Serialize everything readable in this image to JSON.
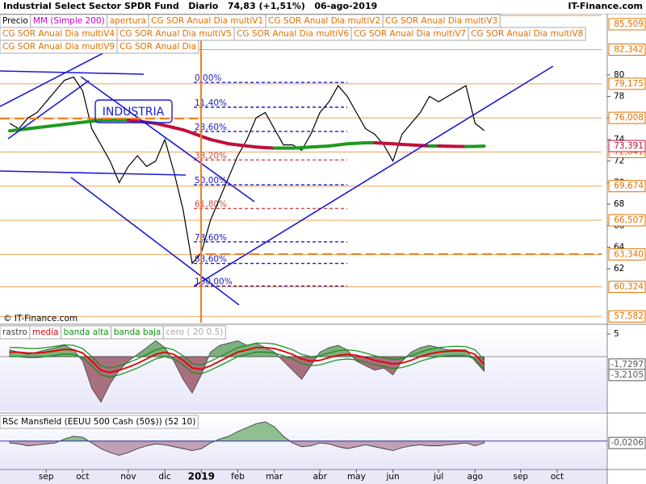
{
  "chart_data": [
    {
      "type": "line",
      "title": "Industrial Select Sector SPDR Fund   Diario   74,83 (+1,51%)   06-ago-2019",
      "brand": "IT-Finance.com",
      "copyright": "© IT-Finance.com",
      "annotation": "INDUSTRIA",
      "categories": [
        null,
        null,
        null,
        null,
        "sep",
        null,
        null,
        null,
        "oct",
        null,
        null,
        null,
        null,
        "nov",
        null,
        null,
        null,
        "dic",
        null,
        null,
        null,
        "2019",
        null,
        null,
        null,
        "feb",
        null,
        null,
        null,
        "mar",
        null,
        null,
        null,
        null,
        "abr",
        null,
        null,
        null,
        "may",
        null,
        null,
        null,
        "jun",
        null,
        null,
        null,
        null,
        "jul",
        null,
        null,
        null,
        "ago",
        null,
        null,
        null,
        null,
        "sep",
        null,
        null,
        null,
        "oct",
        null
      ],
      "ylim": [
        57,
        85.6
      ],
      "yticks": [
        62,
        64,
        66,
        68,
        70,
        72,
        74,
        76,
        78,
        80
      ],
      "series": [
        {
          "name": "Precio",
          "color": "#000000",
          "values": [
            75.5,
            75,
            76,
            76.5,
            77.5,
            78.5,
            79.5,
            79.8,
            78.5,
            75,
            73.5,
            72,
            70,
            71.5,
            72.5,
            71.5,
            72,
            74,
            71,
            67.5,
            62.5,
            63.5,
            66.5,
            68.5,
            70.5,
            72.5,
            74,
            76,
            76.5,
            75,
            73.5,
            73.5,
            73,
            74.5,
            76.5,
            77.5,
            79,
            78,
            76.5,
            75,
            74.5,
            73.5,
            72,
            74.5,
            75.5,
            76.5,
            78,
            77.5,
            78,
            78.5,
            79,
            75.5,
            74.83,
            null,
            null,
            null,
            null,
            null,
            null,
            null,
            null,
            null
          ]
        },
        {
          "name": "MM (Simple 200)",
          "color": "#c0103c",
          "color_up": "#1f9a1f",
          "legend_color": "#cc00cc",
          "last_label": "73,391",
          "values": [
            74.8,
            74.9,
            75,
            75.1,
            75.2,
            75.3,
            75.4,
            75.5,
            75.6,
            75.7,
            75.8,
            75.8,
            75.8,
            75.8,
            75.7,
            75.6,
            75.5,
            75.3,
            75.1,
            74.9,
            74.6,
            74.3,
            74,
            73.8,
            73.6,
            73.5,
            73.4,
            73.3,
            73.25,
            73.2,
            73.2,
            73.2,
            73.25,
            73.3,
            73.35,
            73.4,
            73.5,
            73.6,
            73.65,
            73.7,
            73.7,
            73.65,
            73.6,
            73.55,
            73.5,
            73.45,
            73.4,
            73.4,
            73.38,
            73.36,
            73.35,
            73.36,
            73.391,
            null,
            null,
            null,
            null,
            null,
            null,
            null,
            null,
            null
          ]
        }
      ],
      "legend_extra": [
        "apertura",
        "CG SOR Anual Dia multiV1",
        "CG SOR Anual Dia multiV2",
        "CG SOR Anual Dia multiV3",
        "CG SOR Anual Dia multiV4",
        "CG SOR Anual Dia multiV5",
        "CG SOR Anual Dia multiV6",
        "CG SOR Anual Dia multiV7",
        "CG SOR Anual Dia multiV8",
        "CG SOR Anual Dia multiV9",
        "CG SOR Anual Dia"
      ],
      "extra_color": "#e07000",
      "levels": [
        {
          "value": 85.509,
          "label": "85,509"
        },
        {
          "value": 82.342,
          "label": "82,342"
        },
        {
          "value": 79.175,
          "label": "79,175"
        },
        {
          "value": 76.008,
          "label": "76,008"
        },
        {
          "value": 72.841,
          "label": "72,841"
        },
        {
          "value": 69.674,
          "label": "69,674"
        },
        {
          "value": 66.507,
          "label": "66,507"
        },
        {
          "value": 63.34,
          "label": "63,340"
        },
        {
          "value": 60.324,
          "label": "60,324"
        },
        {
          "value": 57.582,
          "label": "57,582"
        }
      ],
      "fibonacci": [
        {
          "value": 79.3,
          "label": "0,00%",
          "color": "#2020c0"
        },
        {
          "value": 77.0,
          "label": "11,40%",
          "color": "#2020c0"
        },
        {
          "value": 74.75,
          "label": "23,60%",
          "color": "#2020c0"
        },
        {
          "value": 72.1,
          "label": "38,20%",
          "color": "#d04848"
        },
        {
          "value": 69.8,
          "label": "50,00%",
          "color": "#2020c0"
        },
        {
          "value": 67.6,
          "label": "61,80%",
          "color": "#d04848"
        },
        {
          "value": 64.5,
          "label": "78,60%",
          "color": "#2020c0"
        },
        {
          "value": 62.5,
          "label": "88,60%",
          "color": "#2020c0"
        },
        {
          "value": 60.4,
          "label": "100,00%",
          "color": "#2020c0"
        }
      ]
    },
    {
      "type": "oscillator",
      "ylim": [
        -11.7,
        6.6
      ],
      "yticks": [
        5
      ],
      "zero_label": "cero ( 20 0.5)",
      "series": [
        {
          "name": "rastro",
          "color": "#404040",
          "fill_up": "#7fae7f",
          "fill_down": "#a8707f",
          "last_label": "-3,2105",
          "values": [
            1.5,
            1,
            0.5,
            1,
            1.5,
            2,
            2.5,
            1.5,
            -1,
            -7,
            -10,
            -6,
            -3,
            -1,
            0.5,
            2,
            3.5,
            2,
            -1,
            -5,
            -8,
            -4,
            1,
            2.5,
            3,
            3.5,
            2.5,
            3,
            2,
            1,
            -1,
            -3,
            -5,
            -2,
            1,
            2,
            2.5,
            1.5,
            -1,
            -2,
            -3,
            -2.5,
            -4,
            -1,
            1,
            2,
            2.5,
            2,
            1.5,
            1.5,
            1.5,
            -1,
            -3.2105,
            null,
            null,
            null,
            null,
            null,
            null,
            null,
            null,
            null
          ]
        },
        {
          "name": "media",
          "color": "#e00000",
          "last_label": "-1,7297",
          "values": [
            1,
            1,
            0.8,
            0.8,
            1,
            1.3,
            1.6,
            1.5,
            0.8,
            -1,
            -3,
            -3.5,
            -3,
            -2.3,
            -1.5,
            -0.5,
            0.5,
            1,
            0.5,
            -0.8,
            -2.5,
            -2.8,
            -2,
            -1,
            0,
            1,
            1.5,
            2,
            2,
            1.8,
            1.2,
            0.5,
            -0.5,
            -1,
            -0.8,
            -0.2,
            0.3,
            0.5,
            0.3,
            -0.2,
            -0.8,
            -1.2,
            -1.6,
            -1.4,
            -0.8,
            0,
            0.6,
            1,
            1.2,
            1.3,
            1.2,
            0.5,
            -1.7297,
            null,
            null,
            null,
            null,
            null,
            null,
            null,
            null,
            null
          ]
        },
        {
          "name": "banda alta",
          "color": "#109010",
          "values": [
            2,
            2,
            1.8,
            1.8,
            2,
            2.3,
            2.6,
            2.5,
            1.8,
            0,
            -2,
            -2.5,
            -2,
            -1.3,
            -0.5,
            0.5,
            1.5,
            2,
            1.5,
            0.2,
            -1.5,
            -1.8,
            -1,
            0,
            1,
            2,
            2.5,
            3,
            3,
            2.8,
            2.2,
            1.5,
            0.5,
            0,
            0.2,
            0.8,
            1.3,
            1.5,
            1.3,
            0.8,
            0.2,
            -0.2,
            -0.6,
            -0.4,
            0.2,
            1,
            1.6,
            2,
            2.2,
            2.3,
            2.2,
            1.5,
            -0.7,
            null,
            null,
            null,
            null,
            null,
            null,
            null,
            null,
            null
          ]
        },
        {
          "name": "banda baja",
          "color": "#109010",
          "values": [
            0,
            0,
            -0.2,
            -0.2,
            0,
            0.3,
            0.6,
            0.5,
            -0.2,
            -2,
            -4,
            -4.5,
            -4,
            -3.3,
            -2.5,
            -1.5,
            -0.5,
            0,
            -0.5,
            -1.8,
            -3.5,
            -3.8,
            -3,
            -2,
            -1,
            0,
            0.5,
            1,
            1,
            0.8,
            0.2,
            -0.5,
            -1.5,
            -2,
            -1.8,
            -1.2,
            -0.7,
            -0.5,
            -0.7,
            -1.2,
            -1.8,
            -2.2,
            -2.6,
            -2.4,
            -1.8,
            -1,
            -0.4,
            0,
            0.2,
            0.3,
            0.2,
            -0.5,
            -2.7,
            null,
            null,
            null,
            null,
            null,
            null,
            null,
            null,
            null
          ]
        }
      ]
    },
    {
      "type": "area",
      "ylim": [
        -0.28,
        0.25
      ],
      "series": [
        {
          "name": "RSc Mansfield (EEUU 500 Cash (50$)) (52 10)",
          "color": "#303030",
          "fill_up": "#8fbf8f",
          "fill_down": "#c0a0b8",
          "zero_color": "#4040a0",
          "last_label": "-0,0206",
          "values": [
            -0.02,
            -0.03,
            -0.05,
            -0.04,
            -0.03,
            -0.02,
            0.02,
            0.05,
            0.04,
            -0.02,
            -0.08,
            -0.12,
            -0.15,
            -0.12,
            -0.08,
            -0.05,
            -0.03,
            -0.04,
            -0.06,
            -0.08,
            -0.1,
            -0.08,
            -0.02,
            0.02,
            0.05,
            0.1,
            0.14,
            0.18,
            0.2,
            0.15,
            0.05,
            -0.02,
            -0.06,
            -0.05,
            -0.02,
            -0.03,
            -0.06,
            -0.08,
            -0.06,
            -0.04,
            -0.06,
            -0.08,
            -0.1,
            -0.07,
            -0.05,
            -0.04,
            -0.05,
            -0.05,
            -0.04,
            -0.03,
            -0.02,
            -0.05,
            -0.0206,
            null,
            null,
            null,
            null,
            null,
            null,
            null,
            null,
            null
          ]
        }
      ]
    }
  ]
}
